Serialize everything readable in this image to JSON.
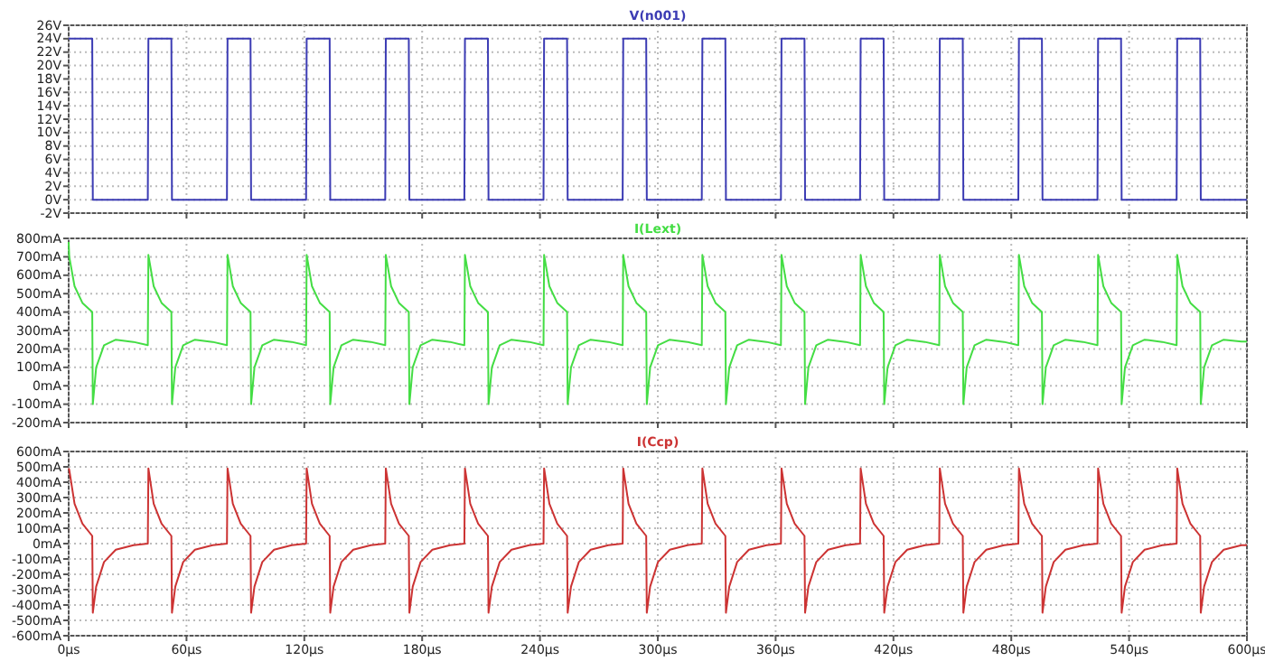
{
  "chart_data": [
    {
      "type": "line",
      "tick_labels": "y",
      "grid": true,
      "legend": "top",
      "line_style": "solid",
      "marker": "none",
      "x": [
        0,
        0.3,
        3,
        7,
        12,
        12.3,
        14,
        18,
        24,
        33,
        40.3,
        40.6,
        43.3,
        47.3,
        52.3,
        52.6,
        54.3,
        58.3,
        64.3,
        73.3,
        80.6,
        80.9,
        83.6,
        87.6,
        92.6,
        92.9,
        94.6,
        98.6,
        104.6,
        113.6,
        120.9,
        121.2,
        123.9,
        127.9,
        132.9,
        133.2,
        134.9,
        138.9,
        144.9,
        153.9,
        161.2,
        161.5,
        164.2,
        168.2,
        173.2,
        173.5,
        175.2,
        179.2,
        185.2,
        194.2,
        201.5,
        201.8,
        204.5,
        208.5,
        213.5,
        213.8,
        215.5,
        219.5,
        225.5,
        234.5,
        241.8,
        242.1,
        244.8,
        248.8,
        253.8,
        254.1,
        255.8,
        259.8,
        265.8,
        274.8,
        282.1,
        282.4,
        285.1,
        289.1,
        294.1,
        294.4,
        296.1,
        300.1,
        306.1,
        315.1,
        322.4,
        322.7,
        325.4,
        329.4,
        334.4,
        334.7,
        336.4,
        340.4,
        346.4,
        355.4,
        362.7,
        363,
        365.7,
        369.7,
        374.7,
        375,
        376.7,
        380.7,
        386.7,
        395.7,
        403,
        403.3,
        406,
        410,
        415,
        415.3,
        417,
        421,
        427,
        436,
        443.3,
        443.6,
        446.3,
        450.3,
        455.3,
        455.6,
        457.3,
        461.3,
        467.3,
        476.3,
        483.6,
        483.9,
        486.6,
        490.6,
        495.6,
        495.9,
        497.6,
        501.6,
        507.6,
        516.6,
        523.9,
        524.2,
        526.9,
        530.9,
        535.9,
        536.2,
        537.9,
        541.9,
        547.9,
        556.9,
        564.2,
        564.5,
        567.2,
        571.2,
        576.2,
        576.5,
        578.2,
        582.2,
        588.2,
        597.2,
        600
      ],
      "xlim": [
        0,
        600
      ],
      "xticks": [
        {
          "value": 0,
          "label": null
        },
        {
          "value": 60,
          "label": null
        },
        {
          "value": 120,
          "label": null
        },
        {
          "value": 180,
          "label": null
        },
        {
          "value": 240,
          "label": null
        },
        {
          "value": 300,
          "label": null
        },
        {
          "value": 360,
          "label": null
        },
        {
          "value": 420,
          "label": null
        },
        {
          "value": 480,
          "label": null
        },
        {
          "value": 540,
          "label": null
        },
        {
          "value": 600,
          "label": null
        }
      ],
      "ylim": [
        -2,
        26
      ],
      "yticks": [
        {
          "value": -2,
          "label": "-2V"
        },
        {
          "value": 0,
          "label": "0V"
        },
        {
          "value": 2,
          "label": "2V"
        },
        {
          "value": 4,
          "label": "4V"
        },
        {
          "value": 6,
          "label": "6V"
        },
        {
          "value": 8,
          "label": "8V"
        },
        {
          "value": 10,
          "label": "10V"
        },
        {
          "value": 12,
          "label": "12V"
        },
        {
          "value": 14,
          "label": "14V"
        },
        {
          "value": 16,
          "label": "16V"
        },
        {
          "value": 18,
          "label": "18V"
        },
        {
          "value": 20,
          "label": "20V"
        },
        {
          "value": 22,
          "label": "22V"
        },
        {
          "value": 24,
          "label": "24V"
        },
        {
          "value": 26,
          "label": "26V"
        }
      ],
      "series": [
        {
          "name": "V(n001)",
          "color": "#3c3cb4",
          "values": [
            24,
            24,
            24,
            24,
            24,
            0,
            0,
            0,
            0,
            0,
            0,
            24,
            24,
            24,
            24,
            0,
            0,
            0,
            0,
            0,
            0,
            24,
            24,
            24,
            24,
            0,
            0,
            0,
            0,
            0,
            0,
            24,
            24,
            24,
            24,
            0,
            0,
            0,
            0,
            0,
            0,
            24,
            24,
            24,
            24,
            0,
            0,
            0,
            0,
            0,
            0,
            24,
            24,
            24,
            24,
            0,
            0,
            0,
            0,
            0,
            0,
            24,
            24,
            24,
            24,
            0,
            0,
            0,
            0,
            0,
            0,
            24,
            24,
            24,
            24,
            0,
            0,
            0,
            0,
            0,
            0,
            24,
            24,
            24,
            24,
            0,
            0,
            0,
            0,
            0,
            0,
            24,
            24,
            24,
            24,
            0,
            0,
            0,
            0,
            0,
            0,
            24,
            24,
            24,
            24,
            0,
            0,
            0,
            0,
            0,
            0,
            24,
            24,
            24,
            24,
            0,
            0,
            0,
            0,
            0,
            0,
            24,
            24,
            24,
            24,
            0,
            0,
            0,
            0,
            0,
            0,
            24,
            24,
            24,
            24,
            0,
            0,
            0,
            0,
            0,
            0,
            24,
            24,
            24,
            24,
            0,
            0,
            0,
            0,
            0,
            0
          ]
        }
      ]
    },
    {
      "type": "line",
      "tick_labels": "y",
      "grid": true,
      "legend": "top",
      "line_style": "solid",
      "marker": "none",
      "x": [
        0,
        0.3,
        3,
        7,
        12,
        12.3,
        14,
        18,
        24,
        33,
        40.3,
        40.6,
        43.3,
        47.3,
        52.3,
        52.6,
        54.3,
        58.3,
        64.3,
        73.3,
        80.6,
        80.9,
        83.6,
        87.6,
        92.6,
        92.9,
        94.6,
        98.6,
        104.6,
        113.6,
        120.9,
        121.2,
        123.9,
        127.9,
        132.9,
        133.2,
        134.9,
        138.9,
        144.9,
        153.9,
        161.2,
        161.5,
        164.2,
        168.2,
        173.2,
        173.5,
        175.2,
        179.2,
        185.2,
        194.2,
        201.5,
        201.8,
        204.5,
        208.5,
        213.5,
        213.8,
        215.5,
        219.5,
        225.5,
        234.5,
        241.8,
        242.1,
        244.8,
        248.8,
        253.8,
        254.1,
        255.8,
        259.8,
        265.8,
        274.8,
        282.1,
        282.4,
        285.1,
        289.1,
        294.1,
        294.4,
        296.1,
        300.1,
        306.1,
        315.1,
        322.4,
        322.7,
        325.4,
        329.4,
        334.4,
        334.7,
        336.4,
        340.4,
        346.4,
        355.4,
        362.7,
        363,
        365.7,
        369.7,
        374.7,
        375,
        376.7,
        380.7,
        386.7,
        395.7,
        403,
        403.3,
        406,
        410,
        415,
        415.3,
        417,
        421,
        427,
        436,
        443.3,
        443.6,
        446.3,
        450.3,
        455.3,
        455.6,
        457.3,
        461.3,
        467.3,
        476.3,
        483.6,
        483.9,
        486.6,
        490.6,
        495.6,
        495.9,
        497.6,
        501.6,
        507.6,
        516.6,
        523.9,
        524.2,
        526.9,
        530.9,
        535.9,
        536.2,
        537.9,
        541.9,
        547.9,
        556.9,
        564.2,
        564.5,
        567.2,
        571.2,
        576.2,
        576.5,
        578.2,
        582.2,
        588.2,
        597.2,
        600
      ],
      "xlim": [
        0,
        600
      ],
      "xticks": [
        {
          "value": 0,
          "label": null
        },
        {
          "value": 60,
          "label": null
        },
        {
          "value": 120,
          "label": null
        },
        {
          "value": 180,
          "label": null
        },
        {
          "value": 240,
          "label": null
        },
        {
          "value": 300,
          "label": null
        },
        {
          "value": 360,
          "label": null
        },
        {
          "value": 420,
          "label": null
        },
        {
          "value": 480,
          "label": null
        },
        {
          "value": 540,
          "label": null
        },
        {
          "value": 600,
          "label": null
        }
      ],
      "ylim": [
        -200,
        800
      ],
      "yticks": [
        {
          "value": -200,
          "label": "-200mA"
        },
        {
          "value": -100,
          "label": "-100mA"
        },
        {
          "value": 0,
          "label": "0mA"
        },
        {
          "value": 100,
          "label": "100mA"
        },
        {
          "value": 200,
          "label": "200mA"
        },
        {
          "value": 300,
          "label": "300mA"
        },
        {
          "value": 400,
          "label": "400mA"
        },
        {
          "value": 500,
          "label": "500mA"
        },
        {
          "value": 600,
          "label": "600mA"
        },
        {
          "value": 700,
          "label": "700mA"
        },
        {
          "value": 800,
          "label": "800mA"
        }
      ],
      "series": [
        {
          "name": "I(Lext)",
          "color": "#44dd44",
          "values": [
            780,
            700,
            540,
            450,
            400,
            -100,
            100,
            220,
            250,
            238,
            220,
            710,
            540,
            450,
            400,
            -100,
            100,
            220,
            250,
            238,
            220,
            710,
            540,
            450,
            400,
            -100,
            100,
            220,
            250,
            238,
            220,
            710,
            540,
            450,
            400,
            -100,
            100,
            220,
            250,
            238,
            220,
            710,
            540,
            450,
            400,
            -100,
            100,
            220,
            250,
            238,
            220,
            710,
            540,
            450,
            400,
            -100,
            100,
            220,
            250,
            238,
            220,
            710,
            540,
            450,
            400,
            -100,
            100,
            220,
            250,
            238,
            220,
            710,
            540,
            450,
            400,
            -100,
            100,
            220,
            250,
            238,
            220,
            710,
            540,
            450,
            400,
            -100,
            100,
            220,
            250,
            238,
            220,
            710,
            540,
            450,
            400,
            -100,
            100,
            220,
            250,
            238,
            220,
            710,
            540,
            450,
            400,
            -100,
            100,
            220,
            250,
            238,
            220,
            710,
            540,
            450,
            400,
            -100,
            100,
            220,
            250,
            238,
            220,
            710,
            540,
            450,
            400,
            -100,
            100,
            220,
            250,
            238,
            220,
            710,
            540,
            450,
            400,
            -100,
            100,
            220,
            250,
            238,
            220,
            710,
            540,
            450,
            400,
            -100,
            100,
            220,
            250,
            240,
            240
          ]
        }
      ]
    },
    {
      "type": "line",
      "grid": true,
      "legend": "top",
      "line_style": "solid",
      "marker": "none",
      "x": [
        0,
        0.3,
        3,
        7,
        12,
        12.3,
        14,
        18,
        24,
        33,
        40.3,
        40.6,
        43.3,
        47.3,
        52.3,
        52.6,
        54.3,
        58.3,
        64.3,
        73.3,
        80.6,
        80.9,
        83.6,
        87.6,
        92.6,
        92.9,
        94.6,
        98.6,
        104.6,
        113.6,
        120.9,
        121.2,
        123.9,
        127.9,
        132.9,
        133.2,
        134.9,
        138.9,
        144.9,
        153.9,
        161.2,
        161.5,
        164.2,
        168.2,
        173.2,
        173.5,
        175.2,
        179.2,
        185.2,
        194.2,
        201.5,
        201.8,
        204.5,
        208.5,
        213.5,
        213.8,
        215.5,
        219.5,
        225.5,
        234.5,
        241.8,
        242.1,
        244.8,
        248.8,
        253.8,
        254.1,
        255.8,
        259.8,
        265.8,
        274.8,
        282.1,
        282.4,
        285.1,
        289.1,
        294.1,
        294.4,
        296.1,
        300.1,
        306.1,
        315.1,
        322.4,
        322.7,
        325.4,
        329.4,
        334.4,
        334.7,
        336.4,
        340.4,
        346.4,
        355.4,
        362.7,
        363,
        365.7,
        369.7,
        374.7,
        375,
        376.7,
        380.7,
        386.7,
        395.7,
        403,
        403.3,
        406,
        410,
        415,
        415.3,
        417,
        421,
        427,
        436,
        443.3,
        443.6,
        446.3,
        450.3,
        455.3,
        455.6,
        457.3,
        461.3,
        467.3,
        476.3,
        483.6,
        483.9,
        486.6,
        490.6,
        495.6,
        495.9,
        497.6,
        501.6,
        507.6,
        516.6,
        523.9,
        524.2,
        526.9,
        530.9,
        535.9,
        536.2,
        537.9,
        541.9,
        547.9,
        556.9,
        564.2,
        564.5,
        567.2,
        571.2,
        576.2,
        576.5,
        578.2,
        582.2,
        588.2,
        597.2,
        600
      ],
      "xlim": [
        0,
        600
      ],
      "xticks": [
        {
          "value": 0,
          "label": "0µs"
        },
        {
          "value": 60,
          "label": "60µs"
        },
        {
          "value": 120,
          "label": "120µs"
        },
        {
          "value": 180,
          "label": "180µs"
        },
        {
          "value": 240,
          "label": "240µs"
        },
        {
          "value": 300,
          "label": "300µs"
        },
        {
          "value": 360,
          "label": "360µs"
        },
        {
          "value": 420,
          "label": "420µs"
        },
        {
          "value": 480,
          "label": "480µs"
        },
        {
          "value": 540,
          "label": "540µs"
        },
        {
          "value": 600,
          "label": "600µs"
        }
      ],
      "ylim": [
        -600,
        600
      ],
      "yticks": [
        {
          "value": -600,
          "label": "-600mA"
        },
        {
          "value": -500,
          "label": "-500mA"
        },
        {
          "value": -400,
          "label": "-400mA"
        },
        {
          "value": -300,
          "label": "-300mA"
        },
        {
          "value": -200,
          "label": "-200mA"
        },
        {
          "value": -100,
          "label": "-100mA"
        },
        {
          "value": 0,
          "label": "0mA"
        },
        {
          "value": 100,
          "label": "100mA"
        },
        {
          "value": 200,
          "label": "200mA"
        },
        {
          "value": 300,
          "label": "300mA"
        },
        {
          "value": 400,
          "label": "400mA"
        },
        {
          "value": 500,
          "label": "500mA"
        },
        {
          "value": 600,
          "label": "600mA"
        }
      ],
      "series": [
        {
          "name": "I(Ccp)",
          "color": "#cc3333",
          "values": [
            490,
            480,
            260,
            130,
            50,
            -450,
            -280,
            -120,
            -40,
            -10,
            0,
            490,
            260,
            130,
            50,
            -450,
            -280,
            -120,
            -40,
            -10,
            0,
            490,
            260,
            130,
            50,
            -450,
            -280,
            -120,
            -40,
            -10,
            0,
            490,
            260,
            130,
            50,
            -450,
            -280,
            -120,
            -40,
            -10,
            0,
            490,
            260,
            130,
            50,
            -450,
            -280,
            -120,
            -40,
            -10,
            0,
            490,
            260,
            130,
            50,
            -450,
            -280,
            -120,
            -40,
            -10,
            0,
            490,
            260,
            130,
            50,
            -450,
            -280,
            -120,
            -40,
            -10,
            0,
            490,
            260,
            130,
            50,
            -450,
            -280,
            -120,
            -40,
            -10,
            0,
            490,
            260,
            130,
            50,
            -450,
            -280,
            -120,
            -40,
            -10,
            0,
            490,
            260,
            130,
            50,
            -450,
            -280,
            -120,
            -40,
            -10,
            0,
            490,
            260,
            130,
            50,
            -450,
            -280,
            -120,
            -40,
            -10,
            0,
            490,
            260,
            130,
            50,
            -450,
            -280,
            -120,
            -40,
            -10,
            0,
            490,
            260,
            130,
            50,
            -450,
            -280,
            -120,
            -40,
            -10,
            0,
            490,
            260,
            130,
            50,
            -450,
            -280,
            -120,
            -40,
            -10,
            0,
            490,
            260,
            130,
            50,
            -450,
            -280,
            -120,
            -40,
            -10,
            -10
          ]
        }
      ]
    }
  ]
}
